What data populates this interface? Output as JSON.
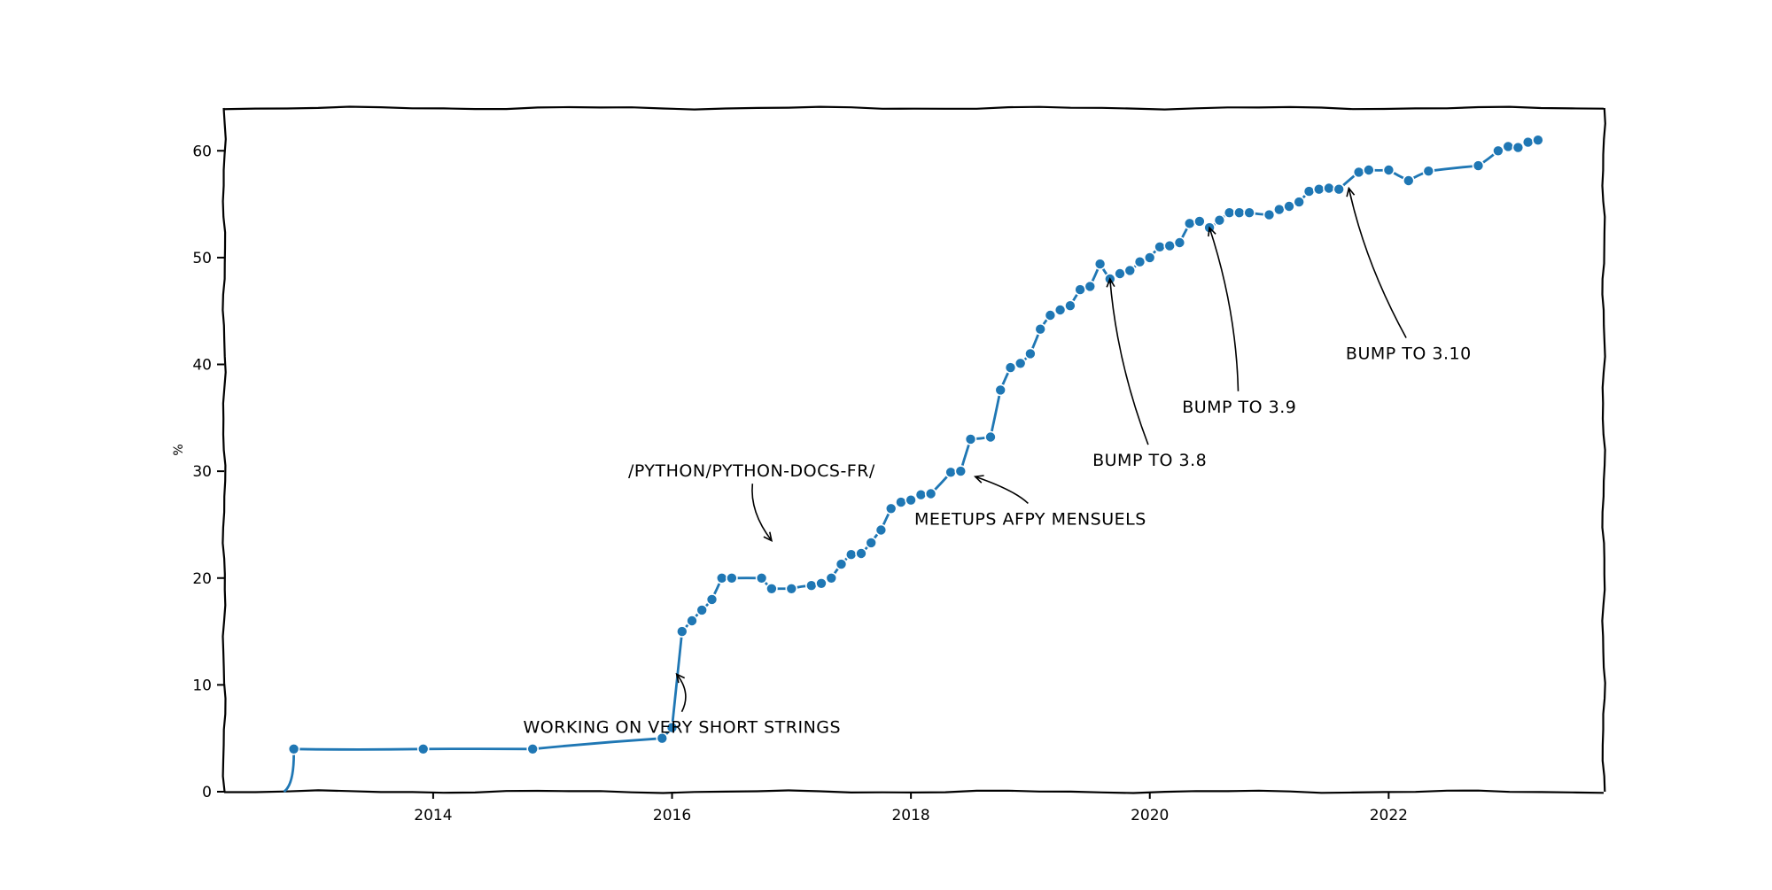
{
  "chart_data": {
    "type": "line",
    "title": "",
    "xlabel": "",
    "ylabel": "%",
    "xlim": [
      2012.25,
      2023.8
    ],
    "ylim": [
      0,
      64
    ],
    "x_ticks": [
      "2014",
      "2016",
      "2018",
      "2020",
      "2022"
    ],
    "y_ticks": [
      0,
      10,
      20,
      30,
      40,
      50,
      60
    ],
    "grid": false,
    "line_color": "#1f77b4",
    "series": [
      {
        "points": [
          [
            "2012-11-01",
            4.0
          ],
          [
            "2013-12-01",
            4.0
          ],
          [
            "2014-11-01",
            4.0
          ],
          [
            "2015-12-01",
            5.0
          ],
          [
            "2016-01-01",
            6.0
          ],
          [
            "2016-02-01",
            15.0
          ],
          [
            "2016-03-01",
            16.0
          ],
          [
            "2016-04-01",
            17.0
          ],
          [
            "2016-05-01",
            18.0
          ],
          [
            "2016-06-01",
            20.0
          ],
          [
            "2016-07-01",
            20.0
          ],
          [
            "2016-10-01",
            20.0
          ],
          [
            "2016-11-01",
            19.0
          ],
          [
            "2017-01-01",
            19.0
          ],
          [
            "2017-03-01",
            19.3
          ],
          [
            "2017-04-01",
            19.5
          ],
          [
            "2017-05-01",
            20.0
          ],
          [
            "2017-06-01",
            21.3
          ],
          [
            "2017-07-01",
            22.2
          ],
          [
            "2017-08-01",
            22.3
          ],
          [
            "2017-09-01",
            23.3
          ],
          [
            "2017-10-01",
            24.5
          ],
          [
            "2017-11-01",
            26.5
          ],
          [
            "2017-12-01",
            27.1
          ],
          [
            "2018-01-01",
            27.3
          ],
          [
            "2018-02-01",
            27.8
          ],
          [
            "2018-03-01",
            27.9
          ],
          [
            "2018-05-01",
            29.9
          ],
          [
            "2018-06-01",
            30.0
          ],
          [
            "2018-07-01",
            33.0
          ],
          [
            "2018-09-01",
            33.2
          ],
          [
            "2018-10-01",
            37.6
          ],
          [
            "2018-11-01",
            39.7
          ],
          [
            "2018-12-01",
            40.1
          ],
          [
            "2019-01-01",
            41.0
          ],
          [
            "2019-02-01",
            43.3
          ],
          [
            "2019-03-01",
            44.6
          ],
          [
            "2019-04-01",
            45.1
          ],
          [
            "2019-05-01",
            45.5
          ],
          [
            "2019-06-01",
            47.0
          ],
          [
            "2019-07-01",
            47.3
          ],
          [
            "2019-08-01",
            49.4
          ],
          [
            "2019-09-01",
            48.0
          ],
          [
            "2019-10-01",
            48.5
          ],
          [
            "2019-11-01",
            48.8
          ],
          [
            "2019-12-01",
            49.6
          ],
          [
            "2020-01-01",
            50.0
          ],
          [
            "2020-02-01",
            51.0
          ],
          [
            "2020-03-01",
            51.1
          ],
          [
            "2020-04-01",
            51.4
          ],
          [
            "2020-05-01",
            53.2
          ],
          [
            "2020-06-01",
            53.4
          ],
          [
            "2020-07-01",
            52.8
          ],
          [
            "2020-08-01",
            53.5
          ],
          [
            "2020-09-01",
            54.2
          ],
          [
            "2020-10-01",
            54.2
          ],
          [
            "2020-11-01",
            54.2
          ],
          [
            "2021-01-01",
            54.0
          ],
          [
            "2021-02-01",
            54.5
          ],
          [
            "2021-03-01",
            54.8
          ],
          [
            "2021-04-01",
            55.2
          ],
          [
            "2021-05-01",
            56.2
          ],
          [
            "2021-06-01",
            56.4
          ],
          [
            "2021-07-01",
            56.5
          ],
          [
            "2021-08-01",
            56.4
          ],
          [
            "2021-10-01",
            58.0
          ],
          [
            "2021-11-01",
            58.2
          ],
          [
            "2022-01-01",
            58.2
          ],
          [
            "2022-03-01",
            57.2
          ],
          [
            "2022-05-01",
            58.1
          ],
          [
            "2022-10-01",
            58.6
          ],
          [
            "2022-12-01",
            60.0
          ],
          [
            "2023-01-01",
            60.4
          ],
          [
            "2023-02-01",
            60.3
          ],
          [
            "2023-03-01",
            60.8
          ],
          [
            "2023-04-01",
            61.0
          ]
        ]
      }
    ],
    "annotations": [
      {
        "text": "WORKING ON VERY SHORT STRINGS",
        "target": [
          "2016-01-15",
          11.0
        ],
        "text_at": [
          "2016-02-01",
          5.5
        ]
      },
      {
        "text": "/PYTHON/PYTHON-DOCS-FR/",
        "target": [
          "2016-11-01",
          23.5
        ],
        "text_at": [
          "2016-09-01",
          29.5
        ]
      },
      {
        "text": "MEETUPS AFPY MENSUELS",
        "target": [
          "2018-07-15",
          29.5
        ],
        "text_at": [
          "2019-01-01",
          25.0
        ]
      },
      {
        "text": "BUMP TO 3.8",
        "target": [
          "2019-09-01",
          48.0
        ],
        "text_at": [
          "2020-01-01",
          30.5
        ]
      },
      {
        "text": "BUMP TO 3.9",
        "target": [
          "2020-07-01",
          52.8
        ],
        "text_at": [
          "2020-10-01",
          35.5
        ]
      },
      {
        "text": "BUMP TO 3.10",
        "target": [
          "2021-09-01",
          56.5
        ],
        "text_at": [
          "2022-03-01",
          40.5
        ]
      }
    ]
  }
}
